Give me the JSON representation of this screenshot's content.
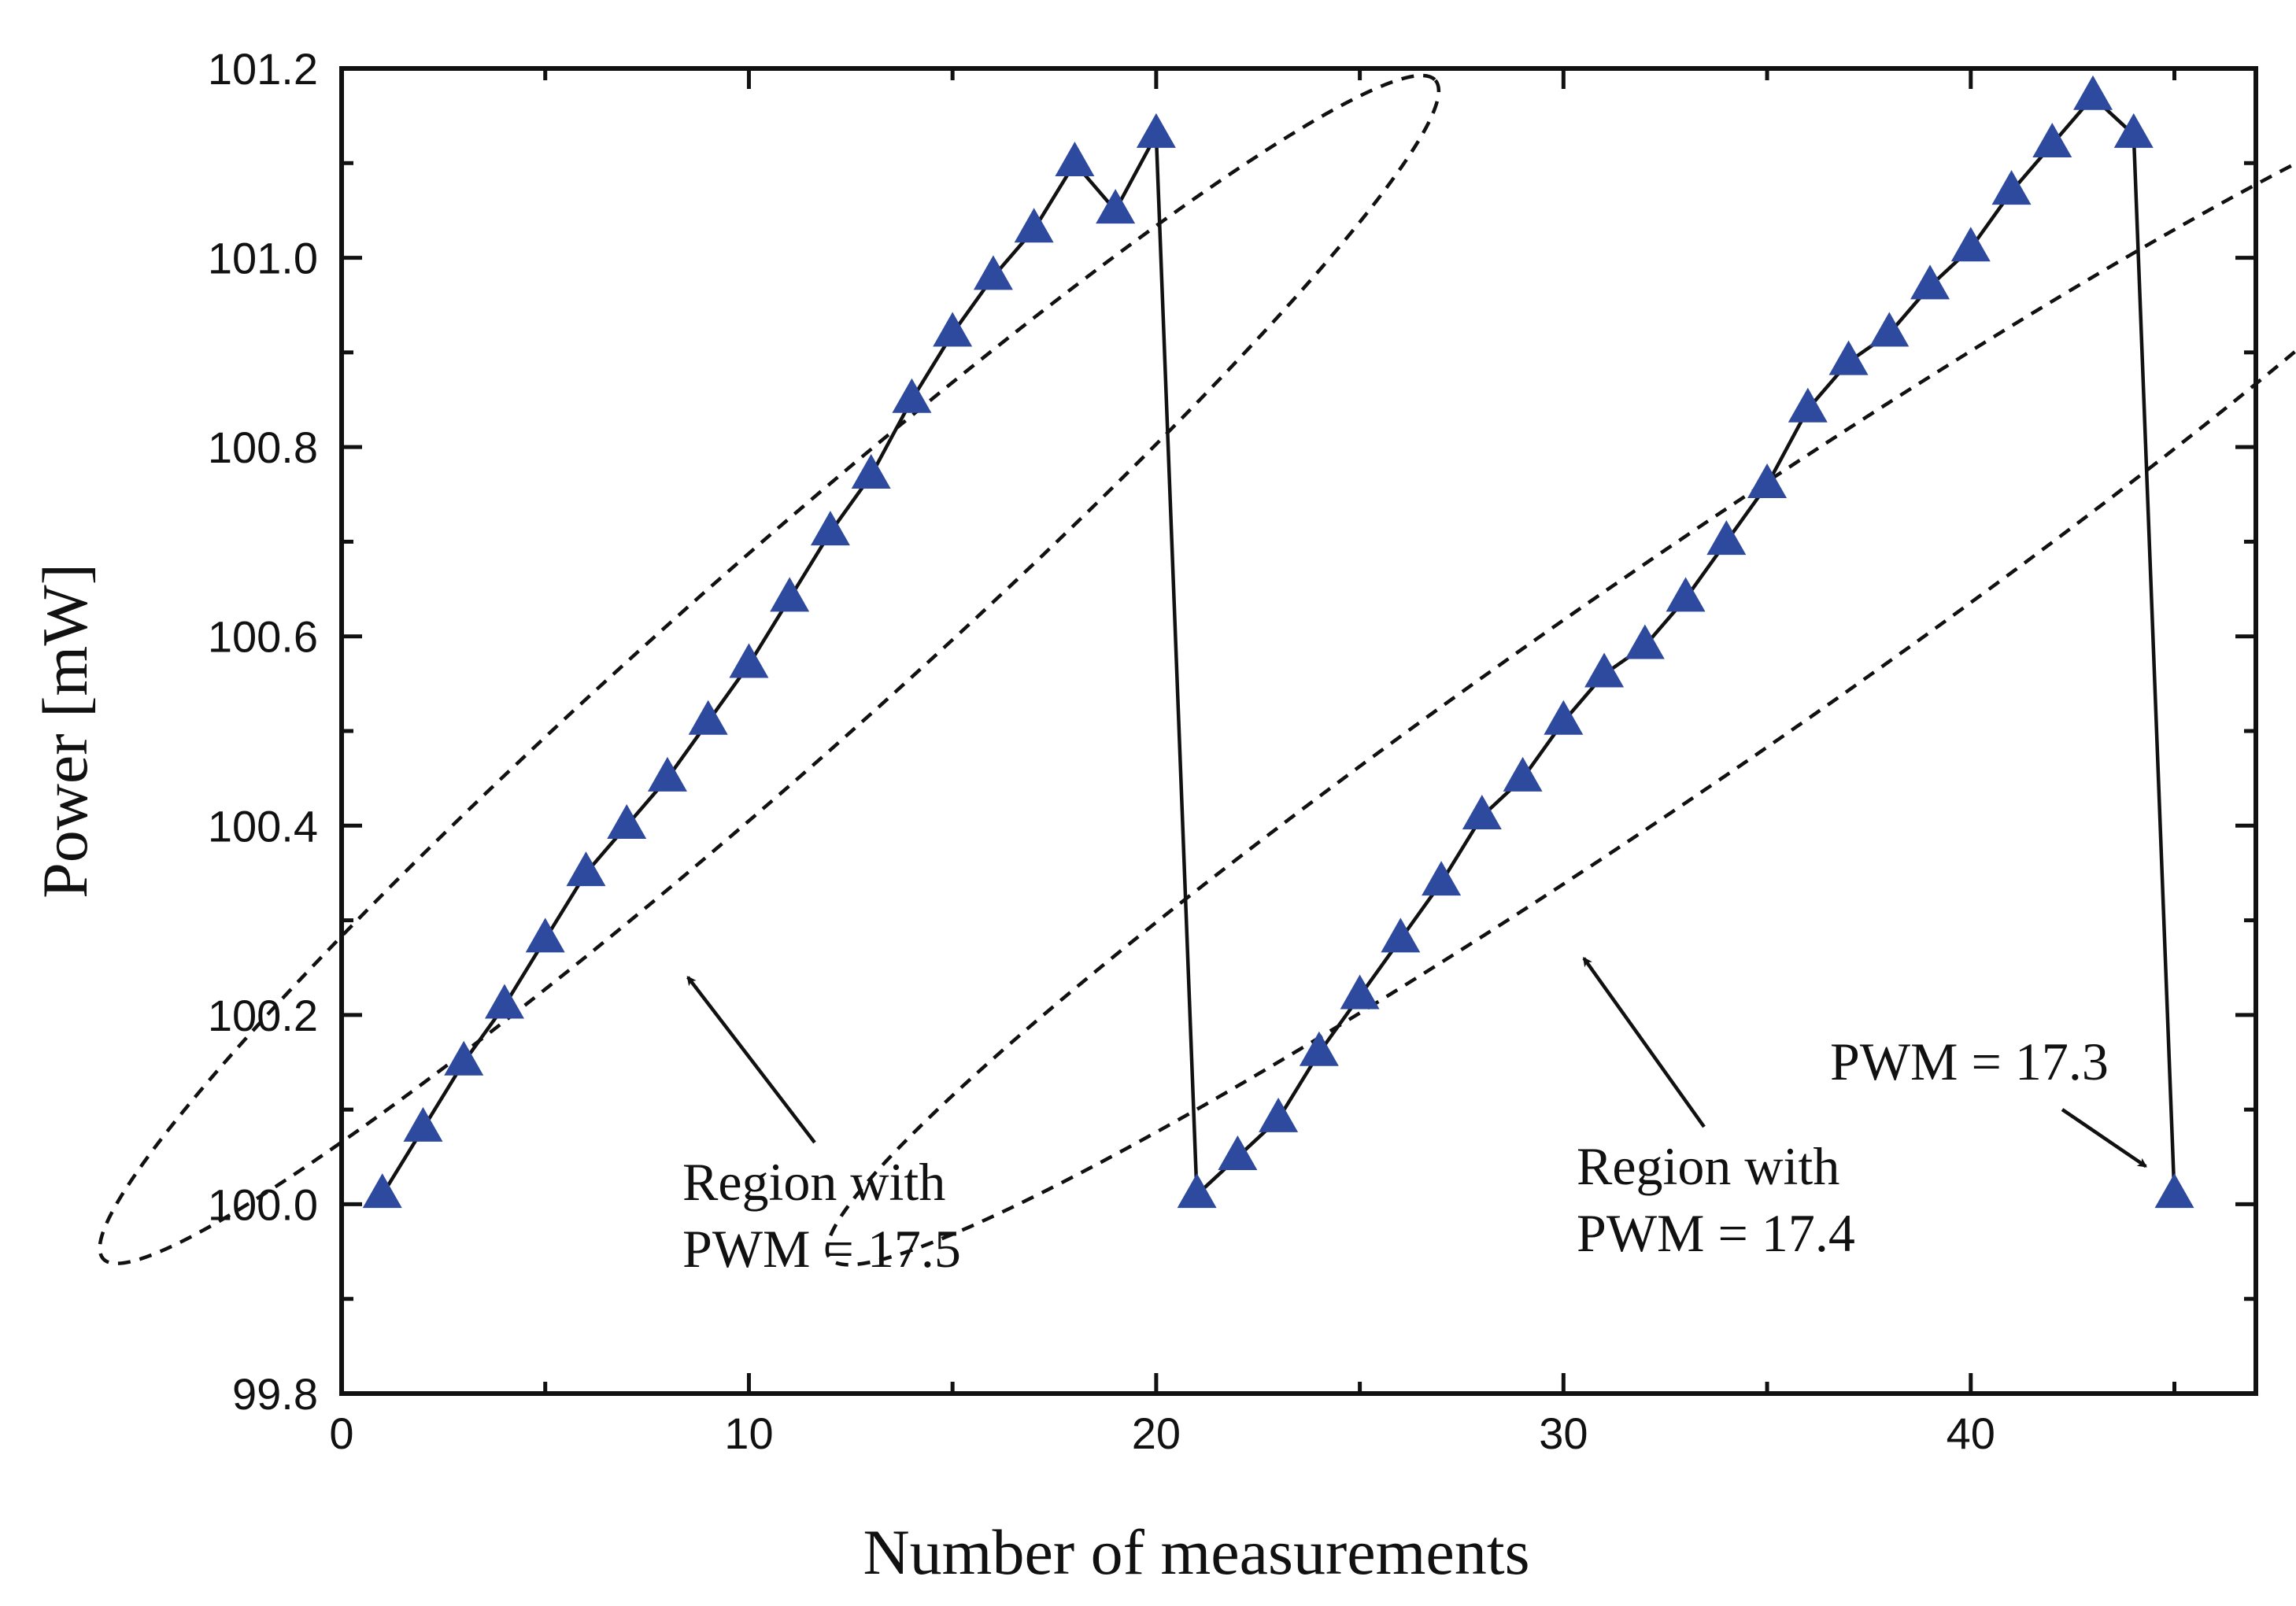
{
  "chart_data": {
    "type": "line",
    "title": "",
    "xlabel": "Number of measurements",
    "ylabel": "Power [mW]",
    "xlim": [
      0,
      47
    ],
    "ylim": [
      99.8,
      101.2
    ],
    "xticks": [
      0,
      10,
      20,
      30,
      40
    ],
    "xtick_labels": [
      "0",
      "10",
      "20",
      "30",
      "40"
    ],
    "yticks": [
      99.8,
      100.0,
      100.2,
      100.4,
      100.6,
      100.8,
      101.0,
      101.2
    ],
    "ytick_labels": [
      "99.8",
      "100.0",
      "100.2",
      "100.4",
      "100.6",
      "100.8",
      "101.0",
      "101.2"
    ],
    "grid": false,
    "series": [
      {
        "name": "Power",
        "marker": "triangle",
        "marker_color": "#2E4A9E",
        "line_color": "#111111",
        "x": [
          1,
          2,
          3,
          4,
          5,
          6,
          7,
          8,
          9,
          10,
          11,
          12,
          13,
          14,
          15,
          16,
          17,
          18,
          19,
          20,
          21,
          22,
          23,
          24,
          25,
          26,
          27,
          28,
          29,
          30,
          31,
          32,
          33,
          34,
          35,
          36,
          37,
          38,
          39,
          40,
          41,
          42,
          43,
          44,
          45
        ],
        "y": [
          100.01,
          100.08,
          100.15,
          100.21,
          100.28,
          100.35,
          100.4,
          100.45,
          100.51,
          100.57,
          100.64,
          100.71,
          100.77,
          100.85,
          100.92,
          100.98,
          101.03,
          101.1,
          101.05,
          101.13,
          100.01,
          100.05,
          100.09,
          100.16,
          100.22,
          100.28,
          100.34,
          100.41,
          100.45,
          100.51,
          100.56,
          100.59,
          100.64,
          100.7,
          100.76,
          100.84,
          100.89,
          100.92,
          100.97,
          101.01,
          101.07,
          101.12,
          101.17,
          101.13,
          100.01
        ]
      }
    ],
    "annotations": [
      {
        "text_lines": [
          "Region with",
          "PWM = 17.5"
        ],
        "arrow_to": [
          8.5,
          100.24
        ]
      },
      {
        "text_lines": [
          "Region with",
          "PWM = 17.4"
        ],
        "arrow_to": [
          30.5,
          100.26
        ]
      },
      {
        "text_lines": [
          "PWM = 17.3"
        ],
        "arrow_to": [
          44.3,
          100.04
        ]
      }
    ],
    "regions": [
      {
        "shape": "dashed-ellipse",
        "center": [
          10.5,
          100.565
        ],
        "label": "PWM = 17.5"
      },
      {
        "shape": "dashed-ellipse",
        "center": [
          33.0,
          100.565
        ],
        "label": "PWM = 17.4"
      }
    ]
  }
}
